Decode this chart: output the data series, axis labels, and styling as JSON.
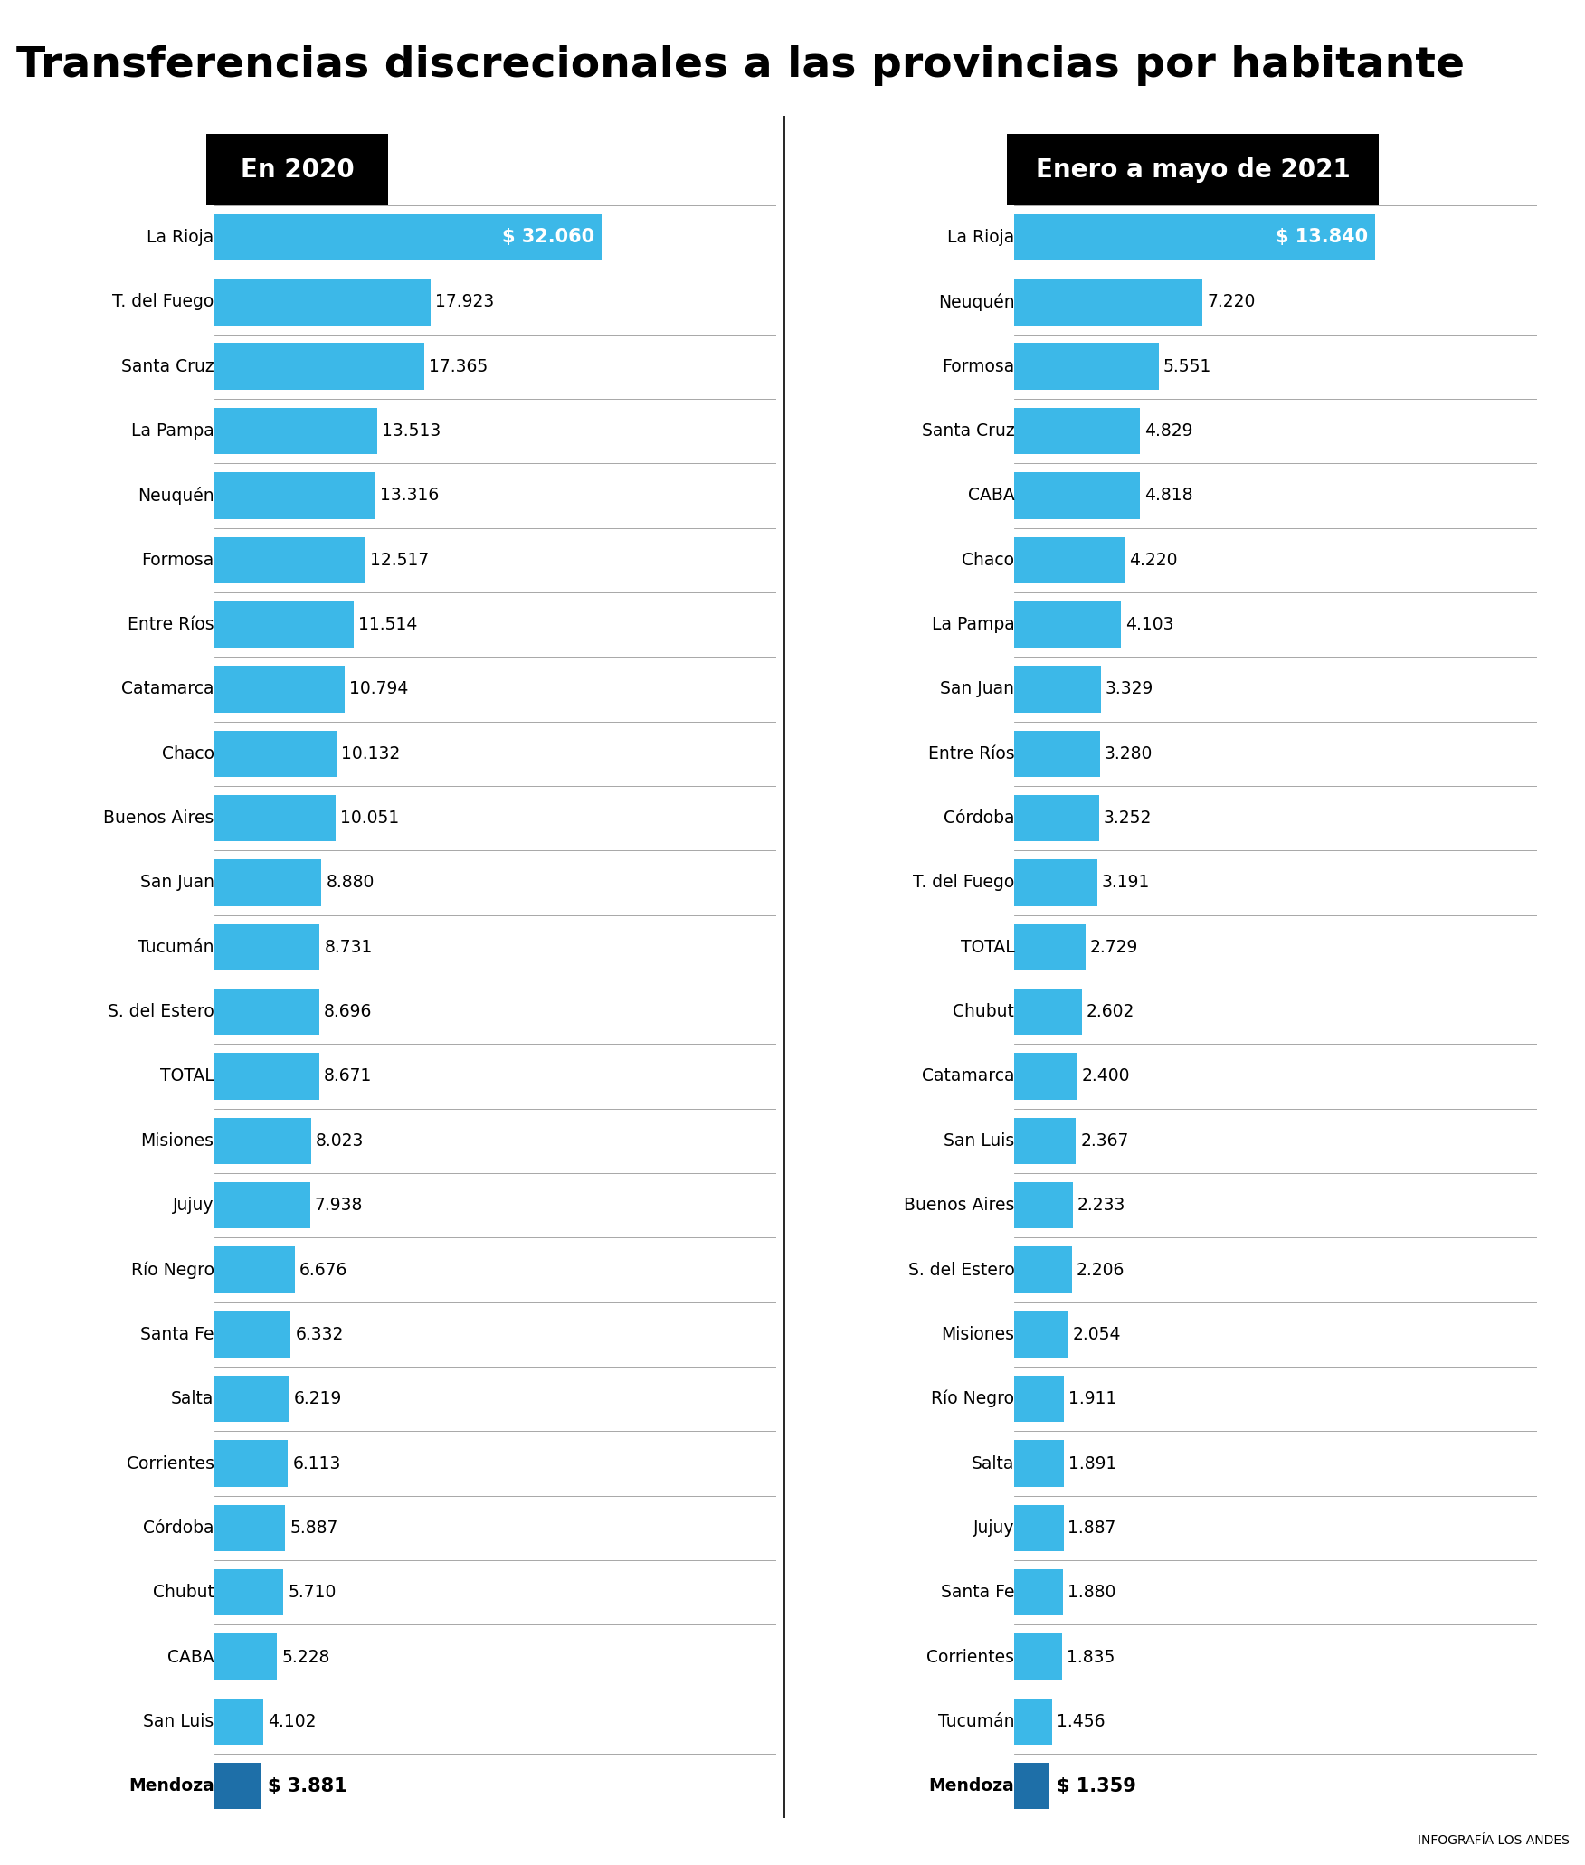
{
  "title": "Transferencias discrecionales a las provincias por habitante",
  "title_fontsize": 36,
  "background_color": "#ffffff",
  "header_2020": "En 2020",
  "header_2021": "Enero a mayo de 2021",
  "footer": "INFOGRAFÍA LOS ANDES",
  "bar_color_light": "#3cb8e8",
  "bar_color_dark": "#1e6fa8",
  "categories_2020": [
    "La Rioja",
    "T. del Fuego",
    "Santa Cruz",
    "La Pampa",
    "Neuquén",
    "Formosa",
    "Entre Ríos",
    "Catamarca",
    "Chaco",
    "Buenos Aires",
    "San Juan",
    "Tucumán",
    "S. del Estero",
    "TOTAL",
    "Misiones",
    "Jujuy",
    "Río Negro",
    "Santa Fe",
    "Salta",
    "Corrientes",
    "Córdoba",
    "Chubut",
    "CABA",
    "San Luis",
    "Mendoza"
  ],
  "values_2020": [
    32060,
    17923,
    17365,
    13513,
    13316,
    12517,
    11514,
    10794,
    10132,
    10051,
    8880,
    8731,
    8696,
    8671,
    8023,
    7938,
    6676,
    6332,
    6219,
    6113,
    5887,
    5710,
    5228,
    4102,
    3881
  ],
  "labels_2020": [
    "$ 32.060",
    "17.923",
    "17.365",
    "13.513",
    "13.316",
    "12.517",
    "11.514",
    "10.794",
    "10.132",
    "10.051",
    "8.880",
    "8.731",
    "8.696",
    "8.671",
    "8.023",
    "7.938",
    "6.676",
    "6.332",
    "6.219",
    "6.113",
    "5.887",
    "5.710",
    "5.228",
    "4.102",
    "$ 3.881"
  ],
  "categories_2021": [
    "La Rioja",
    "Neuquén",
    "Formosa",
    "Santa Cruz",
    "CABA",
    "Chaco",
    "La Pampa",
    "San Juan",
    "Entre Ríos",
    "Córdoba",
    "T. del Fuego",
    "TOTAL",
    "Chubut",
    "Catamarca",
    "San Luis",
    "Buenos Aires",
    "S. del Estero",
    "Misiones",
    "Río Negro",
    "Salta",
    "Jujuy",
    "Santa Fe",
    "Corrientes",
    "Tucumán",
    "Mendoza"
  ],
  "values_2021": [
    13840,
    7220,
    5551,
    4829,
    4818,
    4220,
    4103,
    3329,
    3280,
    3252,
    3191,
    2729,
    2602,
    2400,
    2367,
    2233,
    2206,
    2054,
    1911,
    1891,
    1887,
    1880,
    1835,
    1456,
    1359
  ],
  "labels_2021": [
    "$ 13.840",
    "7.220",
    "5.551",
    "4.829",
    "4.818",
    "4.220",
    "4.103",
    "3.329",
    "3.280",
    "3.252",
    "3.191",
    "2.729",
    "2.602",
    "2.400",
    "2.367",
    "2.233",
    "2.206",
    "2.054",
    "1.911",
    "1.891",
    "1.887",
    "1.880",
    "1.835",
    "1.456",
    "$ 1.359"
  ]
}
